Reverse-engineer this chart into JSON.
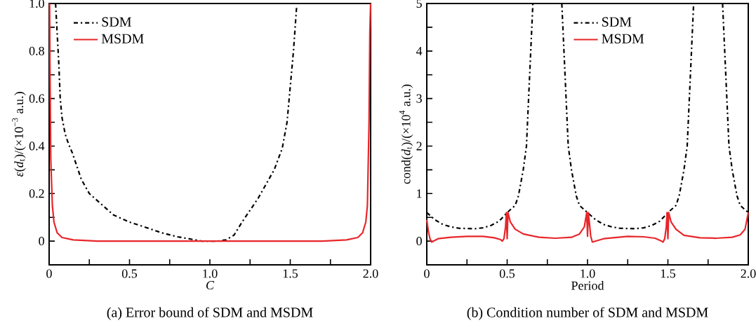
{
  "chart_data": [
    {
      "type": "line",
      "title": "(a) Error bound of SDM and MSDM",
      "xlabel": "C",
      "ylabel": "*ε*(*d*$_{t}$)/(×10$^{−3}$ a.u.)",
      "xlim": [
        0,
        2
      ],
      "ylim": [
        -0.1,
        1.0
      ],
      "xticks": [
        0,
        {
          "value": 0.25,
          "label": null
        },
        0.5,
        {
          "value": 0.75,
          "label": null
        },
        {
          "value": 1,
          "label": "1.0"
        },
        {
          "value": 1.25,
          "label": null
        },
        1.5,
        {
          "value": 1.75,
          "label": null
        },
        {
          "value": 2,
          "label": "2.0"
        }
      ],
      "yticks": [
        0,
        {
          "value": 0.1,
          "label": null
        },
        0.2,
        {
          "value": 0.3,
          "label": null
        },
        0.4,
        {
          "value": 0.5,
          "label": null
        },
        0.6,
        {
          "value": 0.7,
          "label": null
        },
        0.8,
        {
          "value": 0.9,
          "label": null
        },
        {
          "value": 1,
          "label": "1.0"
        }
      ],
      "legend": "top left",
      "grid": false,
      "series": [
        {
          "name": "SDM",
          "color": "#000000",
          "line_style": "dashdot",
          "x": [
            0.04,
            0.06,
            0.069,
            0.08,
            0.1,
            0.12,
            0.145,
            0.2,
            0.25,
            0.3,
            0.4,
            0.5,
            0.6,
            0.7,
            0.8,
            0.9,
            0.95,
            1.05,
            1.1,
            1.15,
            1.2,
            1.25,
            1.3,
            1.35,
            1.4,
            1.45,
            1.48,
            1.5,
            1.52,
            1.54
          ],
          "values": [
            1.0,
            0.75,
            0.6,
            0.52,
            0.45,
            0.41,
            0.37,
            0.26,
            0.2,
            0.17,
            0.11,
            0.08,
            0.058,
            0.035,
            0.018,
            0.006,
            0,
            0,
            0.005,
            0.025,
            0.08,
            0.13,
            0.18,
            0.24,
            0.3,
            0.39,
            0.5,
            0.65,
            0.8,
            0.99
          ]
        },
        {
          "name": "MSDM",
          "color": "#e8262a",
          "line_style": "solid",
          "x": [
            0.003,
            0.005,
            0.01,
            0.02,
            0.03,
            0.05,
            0.08,
            0.15,
            0.3,
            1.7,
            1.85,
            1.92,
            1.95,
            1.97,
            1.98,
            1.99,
            1.995,
            2.0
          ],
          "values": [
            1.0,
            0.75,
            0.35,
            0.15,
            0.08,
            0.035,
            0.015,
            0.005,
            0,
            0,
            0.005,
            0.015,
            0.035,
            0.08,
            0.15,
            0.5,
            0.88,
            1.0
          ]
        }
      ]
    },
    {
      "type": "line",
      "title": "(b) Condition number of SDM and MSDM",
      "xlabel": "Period",
      "ylabel": "cond(*d*$_{t}$)/(×10$^{4}$ a.u.)",
      "xlim": [
        0,
        2
      ],
      "ylim": [
        -0.5,
        5
      ],
      "xticks": [
        0,
        {
          "value": 0.25,
          "label": null
        },
        0.5,
        {
          "value": 0.75,
          "label": null
        },
        {
          "value": 1,
          "label": "1.0"
        },
        {
          "value": 1.25,
          "label": null
        },
        1.5,
        {
          "value": 1.75,
          "label": null
        },
        {
          "value": 2,
          "label": "2.0"
        }
      ],
      "yticks": [
        0,
        {
          "value": 0.5,
          "label": null
        },
        1,
        {
          "value": 1.5,
          "label": null
        },
        2,
        {
          "value": 2.5,
          "label": null
        },
        3,
        {
          "value": 3.5,
          "label": null
        },
        4,
        {
          "value": 4.5,
          "label": null
        },
        5
      ],
      "legend": "top",
      "grid": false,
      "series": [
        {
          "name": "SDM",
          "color": "#000000",
          "line_style": "dashdot",
          "x": [
            0,
            0.05,
            0.1,
            0.15,
            0.2,
            0.3,
            0.35,
            0.4,
            0.45,
            0.5,
            0.55,
            0.57,
            0.6,
            0.62,
            0.64,
            0.66,
            0.75,
            0.84,
            0.86,
            0.88,
            0.9,
            0.93,
            0.95,
            1.0,
            1.05,
            1.1,
            1.15,
            1.2,
            1.3,
            1.35,
            1.4,
            1.45,
            1.5,
            1.55,
            1.57,
            1.6,
            1.62,
            1.64,
            1.66,
            1.75,
            1.84,
            1.86,
            1.88,
            1.9,
            1.93,
            1.95,
            2.0
          ],
          "values": [
            0.6,
            0.45,
            0.35,
            0.3,
            0.27,
            0.26,
            0.28,
            0.33,
            0.42,
            0.6,
            0.75,
            0.95,
            1.5,
            2.0,
            3.5,
            5.0,
            null,
            5.0,
            3.5,
            2.0,
            1.5,
            0.95,
            0.75,
            0.6,
            0.45,
            0.35,
            0.3,
            0.27,
            0.26,
            0.28,
            0.33,
            0.42,
            0.6,
            0.75,
            0.95,
            1.5,
            2.0,
            3.5,
            5.0,
            null,
            5.0,
            3.5,
            2.0,
            1.5,
            0.95,
            0.75,
            0.6
          ]
        },
        {
          "name": "MSDM",
          "color": "#e8262a",
          "line_style": "solid",
          "x": [
            0,
            0.01,
            0.02,
            0.03,
            0.07,
            0.15,
            0.25,
            0.35,
            0.42,
            0.46,
            0.47,
            0.48,
            0.49,
            0.495,
            0.5,
            0.505,
            0.52,
            0.55,
            0.6,
            0.7,
            0.8,
            0.9,
            0.95,
            0.98,
            0.995,
            1.0,
            1.005,
            1.02,
            1.03,
            1.1,
            1.25,
            1.35,
            1.42,
            1.46,
            1.47,
            1.48,
            1.49,
            1.495,
            1.5,
            1.505,
            1.52,
            1.55,
            1.6,
            1.7,
            1.8,
            1.9,
            1.95,
            1.98,
            2.0
          ],
          "values": [
            0.45,
            0.2,
            0.05,
            -0.02,
            0.05,
            0.08,
            0.1,
            0.1,
            0.07,
            0.03,
            0,
            0.05,
            0.3,
            0.6,
            0.05,
            0.6,
            0.4,
            0.25,
            0.15,
            0.08,
            0.06,
            0.08,
            0.15,
            0.3,
            0.6,
            0.1,
            0.6,
            0.1,
            -0.02,
            0.05,
            0.1,
            0.09,
            0.06,
            0,
            -0.02,
            0.05,
            0.3,
            0.6,
            0.05,
            0.6,
            0.4,
            0.25,
            0.12,
            0.07,
            0.06,
            0.08,
            0.13,
            0.25,
            0.6
          ]
        }
      ]
    }
  ]
}
